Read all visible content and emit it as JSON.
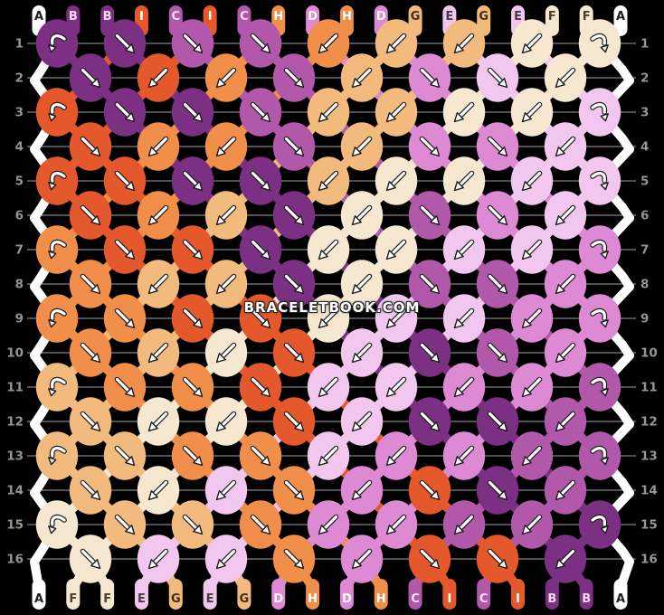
{
  "watermark": "BRACELETBOOK.COM",
  "strings_top": [
    "A",
    "B",
    "B",
    "I",
    "C",
    "I",
    "C",
    "H",
    "D",
    "H",
    "D",
    "G",
    "E",
    "G",
    "E",
    "F",
    "F",
    "A"
  ],
  "strings_bottom": [
    "A",
    "F",
    "F",
    "E",
    "G",
    "E",
    "G",
    "D",
    "H",
    "D",
    "H",
    "C",
    "I",
    "C",
    "I",
    "B",
    "B",
    "A"
  ],
  "palette": {
    "A": {
      "fill": "#ffffff",
      "text": "#1e1e1e"
    },
    "B": {
      "fill": "#7c3083",
      "text": "#f6d9f2"
    },
    "C": {
      "fill": "#b258ab",
      "text": "#f8e4f6"
    },
    "D": {
      "fill": "#de89d4",
      "text": "#ffffff"
    },
    "E": {
      "fill": "#f2c7ef",
      "text": "#463e42"
    },
    "F": {
      "fill": "#f6e7d1",
      "text": "#494034"
    },
    "G": {
      "fill": "#f2ba7c",
      "text": "#3f2d1a"
    },
    "H": {
      "fill": "#f18e49",
      "text": "#ffffff"
    },
    "I": {
      "fill": "#e4582b",
      "text": "#ffffff"
    }
  },
  "rows": [
    {
      "num": "1",
      "types": [
        "bf",
        "f",
        "f",
        "f",
        "b",
        "b",
        "b",
        "b",
        "fb"
      ]
    },
    {
      "num": "2",
      "types": [
        "f",
        "b",
        "b",
        "f",
        "b",
        "f",
        "f",
        "b"
      ]
    },
    {
      "num": "3",
      "types": [
        "bf",
        "f",
        "f",
        "f",
        "b",
        "b",
        "b",
        "b",
        "fb"
      ]
    },
    {
      "num": "4",
      "types": [
        "f",
        "b",
        "b",
        "f",
        "b",
        "f",
        "f",
        "b"
      ]
    },
    {
      "num": "5",
      "types": [
        "bf",
        "f",
        "f",
        "f",
        "b",
        "b",
        "b",
        "b",
        "fb"
      ]
    },
    {
      "num": "6",
      "types": [
        "f",
        "b",
        "b",
        "f",
        "b",
        "f",
        "f",
        "b"
      ]
    },
    {
      "num": "7",
      "types": [
        "bf",
        "f",
        "f",
        "f",
        "b",
        "b",
        "b",
        "b",
        "fb"
      ]
    },
    {
      "num": "8",
      "types": [
        "f",
        "b",
        "b",
        "f",
        "b",
        "f",
        "f",
        "b"
      ]
    },
    {
      "num": "9",
      "types": [
        "bf",
        "f",
        "f",
        "f",
        "b",
        "b",
        "b",
        "b",
        "fb"
      ]
    },
    {
      "num": "10",
      "types": [
        "f",
        "b",
        "b",
        "f",
        "b",
        "f",
        "f",
        "b"
      ]
    },
    {
      "num": "11",
      "types": [
        "bf",
        "f",
        "f",
        "f",
        "b",
        "b",
        "b",
        "b",
        "fb"
      ]
    },
    {
      "num": "12",
      "types": [
        "f",
        "b",
        "b",
        "f",
        "b",
        "f",
        "f",
        "b"
      ]
    },
    {
      "num": "13",
      "types": [
        "bf",
        "f",
        "f",
        "f",
        "b",
        "b",
        "b",
        "b",
        "fb"
      ]
    },
    {
      "num": "14",
      "types": [
        "f",
        "b",
        "b",
        "f",
        "b",
        "f",
        "f",
        "b"
      ]
    },
    {
      "num": "15",
      "types": [
        "bf",
        "f",
        "f",
        "f",
        "b",
        "b",
        "b",
        "b",
        "fb"
      ]
    },
    {
      "num": "16",
      "types": [
        "f",
        "b",
        "b",
        "f",
        "b",
        "f",
        "f",
        "b"
      ]
    }
  ]
}
